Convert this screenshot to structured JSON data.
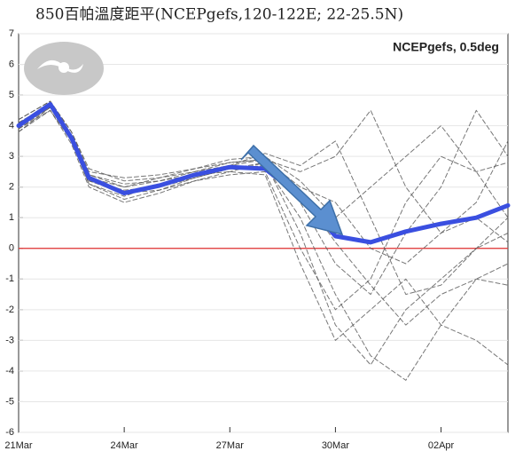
{
  "chart_data": {
    "type": "line",
    "title": "850百帕溫度距平(NCEPgefs,120-122E; 22-25.5N)",
    "annotation": "NCEPgefs, 0.5deg",
    "x": [
      0,
      0.9,
      1.5,
      2,
      3,
      4,
      5,
      6,
      7,
      8,
      9,
      10,
      11,
      12,
      13,
      13.9
    ],
    "xlim": [
      0,
      13.9
    ],
    "xticks": [
      {
        "value": 0,
        "label": "21Mar"
      },
      {
        "value": 3,
        "label": "24Mar"
      },
      {
        "value": 6,
        "label": "27Mar"
      },
      {
        "value": 9,
        "label": "30Mar"
      },
      {
        "value": 12,
        "label": "02Apr"
      }
    ],
    "ylim": [
      -6,
      7
    ],
    "yticks": [
      -6,
      -5,
      -4,
      -3,
      -2,
      -1,
      0,
      1,
      2,
      3,
      4,
      5,
      6,
      7
    ],
    "grid": true,
    "reference_line": {
      "value": 0,
      "color": "#e03030"
    },
    "series": [
      {
        "color": "#555555",
        "style": "dashed",
        "values": [
          3.8,
          4.6,
          3.5,
          2.1,
          1.6,
          1.9,
          2.3,
          2.6,
          2.7,
          1.0,
          -1.5,
          -3.5,
          -4.3,
          -2.5,
          -1.0,
          -0.5
        ]
      },
      {
        "color": "#555555",
        "style": "dashed",
        "values": [
          4.1,
          4.7,
          3.7,
          2.4,
          2.0,
          2.2,
          2.5,
          2.8,
          2.9,
          2.5,
          3.0,
          4.5,
          2.0,
          0.5,
          1.5,
          3.5
        ]
      },
      {
        "color": "#555555",
        "style": "dashed",
        "values": [
          3.9,
          4.5,
          3.4,
          2.0,
          1.5,
          1.8,
          2.2,
          2.5,
          2.8,
          0.5,
          -2.5,
          -3.8,
          -2.0,
          -1.0,
          0.0,
          1.0
        ]
      },
      {
        "color": "#555555",
        "style": "dashed",
        "values": [
          4.2,
          4.8,
          3.8,
          2.5,
          2.3,
          2.4,
          2.6,
          2.9,
          3.0,
          2.2,
          1.0,
          2.0,
          3.0,
          4.0,
          2.5,
          1.0
        ]
      },
      {
        "color": "#555555",
        "style": "dashed",
        "values": [
          4.0,
          4.6,
          3.6,
          2.2,
          1.9,
          2.0,
          2.3,
          2.6,
          2.8,
          1.5,
          -0.5,
          -1.5,
          0.5,
          2.0,
          4.5,
          3.0
        ]
      },
      {
        "color": "#555555",
        "style": "dashed",
        "values": [
          3.8,
          4.5,
          3.5,
          2.1,
          1.7,
          2.1,
          2.4,
          2.5,
          2.4,
          -0.5,
          -3.0,
          -2.0,
          -1.0,
          -2.5,
          -3.0,
          -3.8
        ]
      },
      {
        "color": "#555555",
        "style": "dashed",
        "values": [
          4.1,
          4.7,
          3.7,
          2.3,
          2.0,
          2.3,
          2.5,
          2.7,
          2.9,
          2.0,
          1.5,
          0.0,
          -0.5,
          0.5,
          1.0,
          0.2
        ]
      },
      {
        "color": "#555555",
        "style": "dashed",
        "values": [
          3.9,
          4.6,
          3.5,
          2.2,
          1.8,
          1.9,
          2.2,
          2.4,
          2.5,
          0.0,
          -2.0,
          -1.0,
          1.5,
          3.0,
          2.5,
          2.8
        ]
      },
      {
        "color": "#555555",
        "style": "dashed",
        "values": [
          4.0,
          4.7,
          3.6,
          2.4,
          2.1,
          2.2,
          2.4,
          2.7,
          3.1,
          2.7,
          3.5,
          1.0,
          -1.5,
          -1.2,
          0.0,
          0.5
        ]
      },
      {
        "color": "#555555",
        "style": "dashed",
        "values": [
          4.2,
          4.8,
          3.8,
          2.6,
          2.2,
          2.3,
          2.6,
          2.8,
          2.9,
          1.8,
          0.2,
          -1.2,
          -2.5,
          -1.5,
          -1.0,
          -1.2
        ]
      },
      {
        "color": "#3a4fe0",
        "style": "solid",
        "values": [
          4.0,
          4.7,
          3.6,
          2.3,
          1.8,
          2.05,
          2.4,
          2.65,
          2.6,
          1.7,
          0.4,
          0.2,
          0.55,
          0.8,
          1.0,
          1.4
        ]
      }
    ]
  }
}
